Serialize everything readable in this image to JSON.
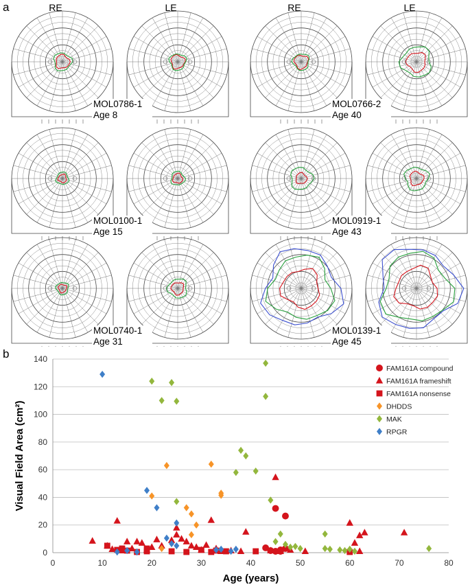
{
  "panel_a": {
    "label": "a",
    "eye_labels": [
      "RE",
      "LE"
    ],
    "subjects": [
      {
        "id": "MOL0786-1",
        "age_text": "Age 8",
        "re_fields": [
          10,
          13
        ],
        "le_fields": [
          10,
          12
        ]
      },
      {
        "id": "MOL0766-2",
        "age_text": "Age 40",
        "re_fields": [
          10,
          12
        ],
        "le_fields": [
          14,
          22
        ]
      },
      {
        "id": "MOL0100-1",
        "age_text": "Age 15",
        "re_fields": [
          6,
          9
        ],
        "le_fields": [
          7,
          10
        ]
      },
      {
        "id": "MOL0919-1",
        "age_text": "Age 43",
        "re_fields": [
          8,
          16
        ],
        "le_fields": [
          10,
          17
        ]
      },
      {
        "id": "MOL0740-1",
        "age_text": "Age 31",
        "re_fields": [
          6,
          9
        ],
        "le_fields": [
          9,
          14
        ]
      },
      {
        "id": "MOL0139-1",
        "age_text": "Age 45",
        "re_fields": [
          28,
          46,
          55
        ],
        "le_fields": [
          30,
          50,
          58
        ]
      }
    ]
  },
  "chart_data": {
    "label": "b",
    "type": "scatter",
    "title": "",
    "xlabel": "Age (years)",
    "ylabel": "Visual Field Area (cm²)",
    "xlim": [
      0,
      80
    ],
    "ylim": [
      0,
      140
    ],
    "xticks": [
      0,
      10,
      20,
      30,
      40,
      50,
      60,
      70,
      80
    ],
    "yticks": [
      0,
      20,
      40,
      60,
      80,
      100,
      120,
      140
    ],
    "grid": "horizontal",
    "legend_position": "top-right",
    "series": [
      {
        "name": "FAM161A compound",
        "color": "#d4141c",
        "marker": "circle",
        "points": [
          [
            43,
            3.5
          ],
          [
            44,
            1.5
          ],
          [
            45,
            32
          ],
          [
            45,
            1
          ],
          [
            46,
            2
          ],
          [
            46,
            1
          ],
          [
            47,
            26.5
          ],
          [
            47,
            3
          ]
        ]
      },
      {
        "name": "FAM161A frameshift",
        "color": "#d4141c",
        "marker": "triangle",
        "points": [
          [
            8,
            8.5
          ],
          [
            11,
            5
          ],
          [
            12,
            2.5
          ],
          [
            13,
            23
          ],
          [
            14,
            1.5
          ],
          [
            15,
            8
          ],
          [
            16,
            3
          ],
          [
            17,
            8
          ],
          [
            18,
            7
          ],
          [
            19,
            2
          ],
          [
            20,
            4
          ],
          [
            21,
            9.5
          ],
          [
            22,
            5
          ],
          [
            24,
            9
          ],
          [
            25,
            18
          ],
          [
            25,
            13
          ],
          [
            26,
            10
          ],
          [
            27,
            8
          ],
          [
            28,
            5
          ],
          [
            29,
            4
          ],
          [
            30,
            2
          ],
          [
            31,
            5.5
          ],
          [
            32,
            23.5
          ],
          [
            33,
            3
          ],
          [
            34,
            1
          ],
          [
            36,
            1.5
          ],
          [
            38,
            1
          ],
          [
            39,
            15
          ],
          [
            44,
            1.5
          ],
          [
            45,
            54.5
          ],
          [
            46,
            1
          ],
          [
            48,
            2
          ],
          [
            51,
            1
          ],
          [
            60,
            21.5
          ],
          [
            61,
            7
          ],
          [
            62,
            12.5
          ],
          [
            63,
            14.5
          ],
          [
            71,
            14.5
          ],
          [
            62,
            1
          ]
        ]
      },
      {
        "name": "FAM161A nonsense",
        "color": "#d4141c",
        "marker": "square",
        "points": [
          [
            11,
            5
          ],
          [
            13,
            2
          ],
          [
            14,
            3
          ],
          [
            15,
            1.5
          ],
          [
            17,
            0.5
          ],
          [
            19,
            3
          ],
          [
            19,
            1
          ],
          [
            24,
            1
          ],
          [
            27,
            0.5
          ],
          [
            30,
            2
          ],
          [
            32,
            0.5
          ],
          [
            33,
            1.5
          ],
          [
            35,
            1
          ],
          [
            41,
            1
          ],
          [
            60,
            0.5
          ]
        ]
      },
      {
        "name": "DHDDS",
        "color": "#f79428",
        "marker": "diamond",
        "points": [
          [
            20,
            41
          ],
          [
            22,
            3
          ],
          [
            23,
            63
          ],
          [
            27,
            32.5
          ],
          [
            28,
            28
          ],
          [
            29,
            20
          ],
          [
            32,
            64
          ],
          [
            34,
            41.5
          ],
          [
            34,
            43
          ],
          [
            28,
            13
          ]
        ]
      },
      {
        "name": "MAK",
        "color": "#93b73d",
        "marker": "diamond",
        "points": [
          [
            20,
            124
          ],
          [
            22,
            110
          ],
          [
            24,
            123
          ],
          [
            25,
            109.5
          ],
          [
            25,
            37
          ],
          [
            37,
            58
          ],
          [
            38,
            74
          ],
          [
            39,
            70
          ],
          [
            41,
            59
          ],
          [
            43,
            137
          ],
          [
            43,
            113
          ],
          [
            44,
            38
          ],
          [
            45,
            8
          ],
          [
            46,
            13.5
          ],
          [
            47,
            6
          ],
          [
            48,
            4
          ],
          [
            49,
            4.5
          ],
          [
            50,
            3
          ],
          [
            55,
            13.5
          ],
          [
            55,
            3
          ],
          [
            56,
            2.5
          ],
          [
            58,
            2
          ],
          [
            59,
            1.5
          ],
          [
            60,
            2.5
          ],
          [
            61,
            1
          ],
          [
            76,
            3
          ]
        ]
      },
      {
        "name": "RPGR",
        "color": "#3f7fc8",
        "marker": "diamond",
        "points": [
          [
            10,
            129
          ],
          [
            13,
            0.5
          ],
          [
            15,
            1.5
          ],
          [
            17,
            0.5
          ],
          [
            19,
            45
          ],
          [
            21,
            32.5
          ],
          [
            23,
            10.5
          ],
          [
            24,
            6.5
          ],
          [
            25,
            21.5
          ],
          [
            25,
            5
          ],
          [
            33,
            2
          ],
          [
            34,
            2.5
          ],
          [
            36,
            1
          ],
          [
            37,
            2.5
          ]
        ]
      }
    ]
  }
}
